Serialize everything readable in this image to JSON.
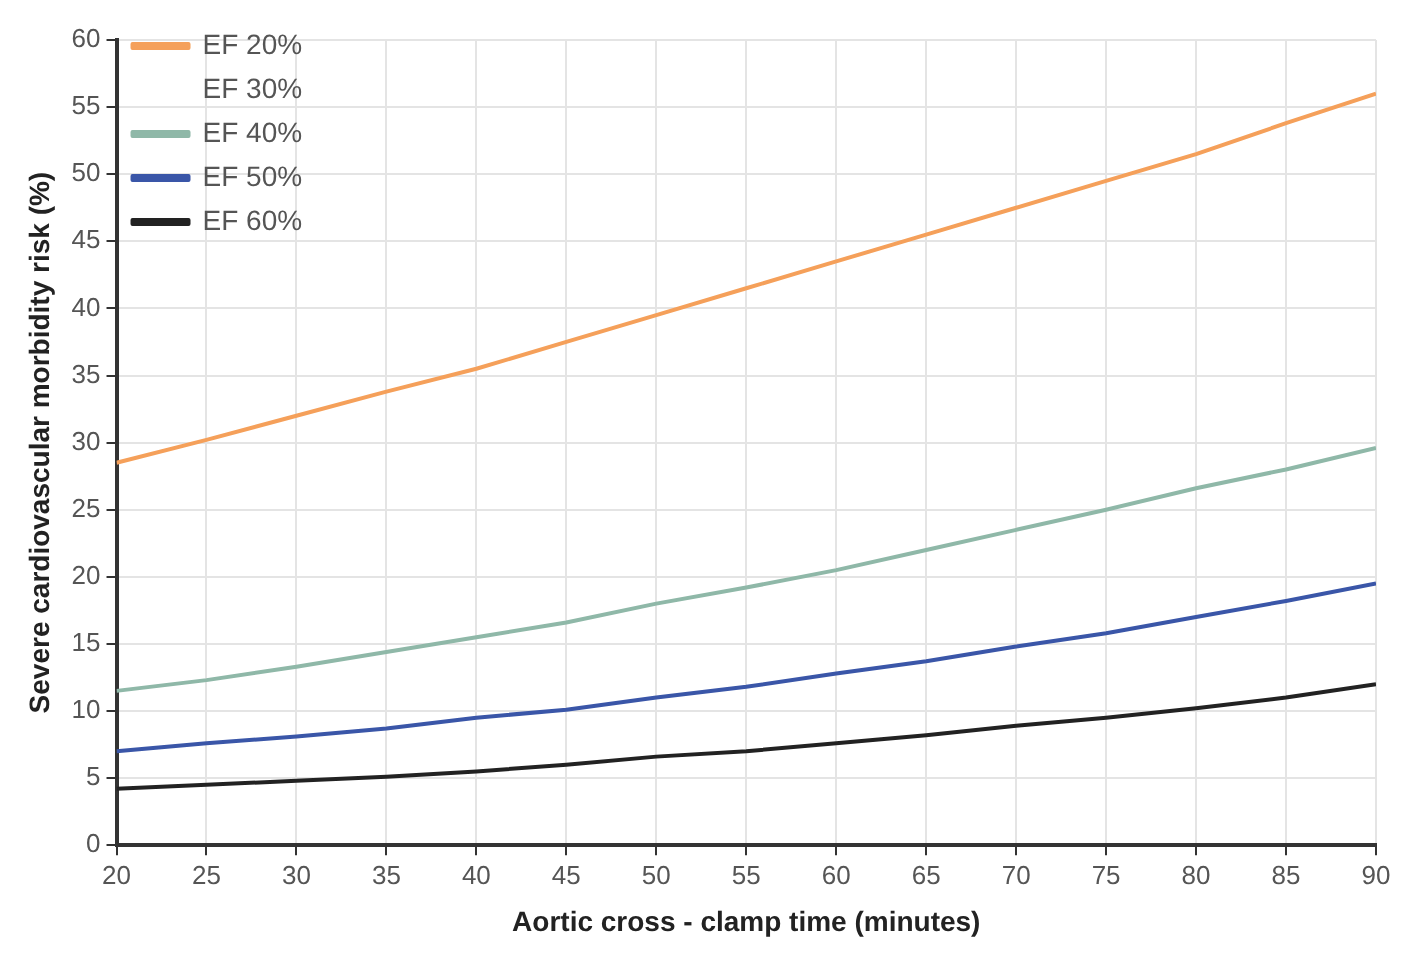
{
  "chart_data": {
    "type": "line",
    "xlabel": "Aortic cross - clamp time (minutes)",
    "ylabel": "Severe cardiovascular morbidity risk (%)",
    "x": [
      20,
      25,
      30,
      35,
      40,
      45,
      50,
      55,
      60,
      65,
      70,
      75,
      80,
      85,
      90
    ],
    "series": [
      {
        "name": "EF 20%",
        "color": "#f5a05a",
        "values": [
          28.5,
          30.2,
          32,
          33.8,
          35.5,
          37.5,
          39.5,
          41.5,
          43.5,
          45.5,
          47.5,
          49.5,
          51.5,
          53.8,
          56
        ]
      },
      {
        "name": "EF 30%",
        "values": [
          null,
          null,
          null,
          null,
          null,
          null,
          null,
          null,
          null,
          null,
          null,
          null,
          null,
          null,
          null
        ]
      },
      {
        "name": "EF 40%",
        "color": "#8fb8a8",
        "values": [
          11.5,
          12.3,
          13.3,
          14.4,
          15.5,
          16.6,
          18,
          19.2,
          20.5,
          22,
          23.5,
          25,
          26.6,
          28,
          29.6
        ]
      },
      {
        "name": "EF 50%",
        "color": "#3a56a8",
        "values": [
          7,
          7.6,
          8.1,
          8.7,
          9.5,
          10.1,
          11,
          11.8,
          12.8,
          13.7,
          14.8,
          15.8,
          17,
          18.2,
          19.5
        ]
      },
      {
        "name": "EF 60%",
        "color": "#222222",
        "values": [
          4.2,
          4.5,
          4.8,
          5.1,
          5.5,
          6,
          6.6,
          7,
          7.6,
          8.2,
          8.9,
          9.5,
          10.2,
          11,
          12
        ]
      }
    ],
    "xlim": [
      20,
      90
    ],
    "xticks": [
      20,
      25,
      30,
      35,
      40,
      45,
      50,
      55,
      60,
      65,
      70,
      75,
      80,
      85,
      90
    ],
    "ylim": [
      0,
      60
    ],
    "yticks": [
      0,
      5,
      10,
      15,
      20,
      25,
      30,
      35,
      40,
      45,
      50,
      55,
      60
    ],
    "grid": true,
    "legend": "top left",
    "marker": "none",
    "line_style": "solid"
  }
}
